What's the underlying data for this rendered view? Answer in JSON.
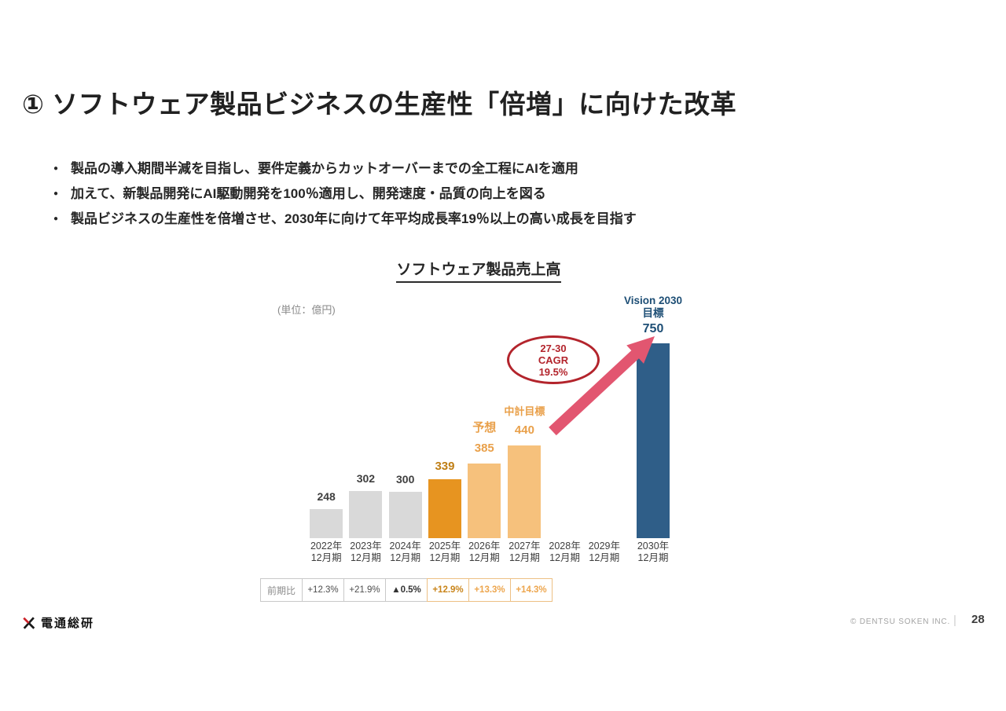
{
  "slide": {
    "title": "① ソフトウェア製品ビジネスの生産性「倍増」に向けた改革",
    "bullets": [
      "製品の導入期間半減を目指し、要件定義からカットオーバーまでの全工程にAIを適用",
      "加えて、新製品開発にAI駆動開発を100％適用し、開発速度・品質の向上を図る",
      "製品ビジネスの生産性を倍増させ、2030年に向けて年平均成長率19％以上の高い成長を目指す"
    ]
  },
  "chart": {
    "title": "ソフトウェア製品売上高",
    "unit_label": "(単位：億円)",
    "cagr_lines": [
      "27-30",
      "CAGR",
      "19.5%"
    ]
  },
  "chart_data": {
    "type": "bar",
    "title": "ソフトウェア製品売上高",
    "unit": "億円",
    "ylim": [
      0,
      800
    ],
    "grid": false,
    "legend": "none",
    "categories": [
      "2022年12月期",
      "2023年12月期",
      "2024年12月期",
      "2025年12月期",
      "2026年12月期",
      "2027年12月期",
      "2028年12月期",
      "2029年12月期",
      "2030年12月期"
    ],
    "values": [
      248,
      302,
      300,
      339,
      385,
      440,
      null,
      null,
      750
    ],
    "annotations": {
      "cagr_label": "27-30 CAGR 19.5%",
      "forecast_label": "予想",
      "midterm_label": "中計目標",
      "vision_labels": [
        "Vision 2030",
        "目標"
      ]
    },
    "colors": {
      "actual": "#d9d9d9",
      "current_year": "#e79420",
      "forecast": "#f6c17c",
      "vision": "#2f5e88",
      "cagr_red": "#b3242c",
      "arrow_pink": "#e25670",
      "navy_text": "#1d4e75",
      "orange_text": "#e9a04a"
    },
    "columns": [
      {
        "year1": "2022年",
        "year2": "12月期",
        "value": 248,
        "color": "#d9d9d9",
        "labels": [
          {
            "text": "248",
            "cls": "lv-gray"
          }
        ]
      },
      {
        "year1": "2023年",
        "year2": "12月期",
        "value": 302,
        "color": "#d9d9d9",
        "labels": [
          {
            "text": "302",
            "cls": "lv-gray"
          }
        ]
      },
      {
        "year1": "2024年",
        "year2": "12月期",
        "value": 300,
        "color": "#d9d9d9",
        "labels": [
          {
            "text": "300",
            "cls": "lv-gray"
          }
        ]
      },
      {
        "year1": "2025年",
        "year2": "12月期",
        "value": 339,
        "color": "#e79420",
        "labels": [
          {
            "text": "339",
            "cls": "lv-dorange"
          }
        ]
      },
      {
        "year1": "2026年",
        "year2": "12月期",
        "value": 385,
        "color": "#f6c17c",
        "labels": [
          {
            "text": "予想",
            "cls": "lv-lorange"
          },
          {
            "text": "385",
            "cls": "lv-lorange"
          }
        ]
      },
      {
        "year1": "2027年",
        "year2": "12月期",
        "value": 440,
        "color": "#f6c17c",
        "labels": [
          {
            "text": "中計目標",
            "cls": "lv-lorange-sm"
          },
          {
            "text": "440",
            "cls": "lv-lorange"
          }
        ]
      },
      {
        "year1": "2028年",
        "year2": "12月期",
        "value": null,
        "color": null,
        "labels": []
      },
      {
        "year1": "2029年",
        "year2": "12月期",
        "value": null,
        "color": null,
        "labels": []
      },
      {
        "year1": "2030年",
        "year2": "12月期",
        "value": 750,
        "color": "#2f5e88",
        "labels": [
          {
            "text": "Vision 2030",
            "cls": "lv-navy"
          },
          {
            "text": "目標",
            "cls": "lv-navy"
          },
          {
            "text": "750",
            "cls": "lv-navy-big"
          }
        ]
      }
    ]
  },
  "table": {
    "header": "前期比",
    "cells": [
      {
        "text": "+12.3%",
        "cls": "t-gray"
      },
      {
        "text": "+21.9%",
        "cls": "t-gray"
      },
      {
        "text": "▲0.5%",
        "cls": "t-dark"
      },
      {
        "text": "+12.9%",
        "cls": "t-dorange"
      },
      {
        "text": "+13.3%",
        "cls": "t-lorange"
      },
      {
        "text": "+14.3%",
        "cls": "t-lorange"
      }
    ]
  },
  "footer": {
    "logo_text": "電通総研",
    "copyright": "© DENTSU SOKEN INC.",
    "divider": "|",
    "page_number": "28"
  }
}
